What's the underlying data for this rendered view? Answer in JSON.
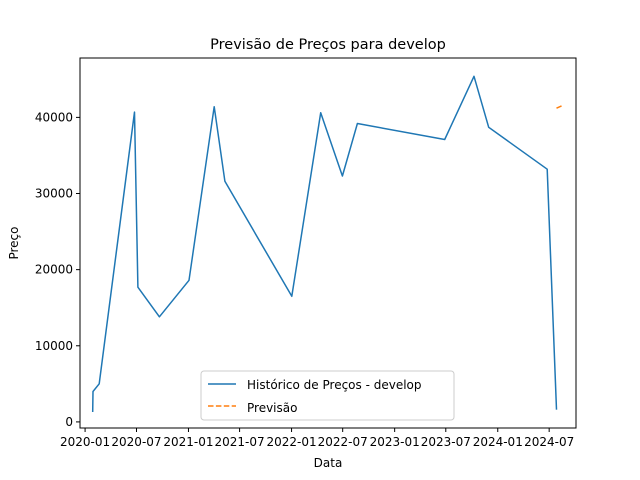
{
  "chart_data": {
    "type": "line",
    "title": "Previsão de Preços para develop",
    "xlabel": "Data",
    "ylabel": "Preço",
    "x_axis_type": "date",
    "xlim": [
      "2019-12-14",
      "2024-10-04"
    ],
    "ylim": [
      -800,
      47800
    ],
    "x_ticks": [
      {
        "date": "2020-01-01",
        "label": "2020-01"
      },
      {
        "date": "2020-07-01",
        "label": "2020-07"
      },
      {
        "date": "2021-01-01",
        "label": "2021-01"
      },
      {
        "date": "2021-07-01",
        "label": "2021-07"
      },
      {
        "date": "2022-01-01",
        "label": "2022-01"
      },
      {
        "date": "2022-07-01",
        "label": "2022-07"
      },
      {
        "date": "2023-01-01",
        "label": "2023-01"
      },
      {
        "date": "2023-07-01",
        "label": "2023-07"
      },
      {
        "date": "2024-01-01",
        "label": "2024-01"
      },
      {
        "date": "2024-07-01",
        "label": "2024-07"
      }
    ],
    "y_ticks": [
      0,
      10000,
      20000,
      30000,
      40000
    ],
    "y_tick_labels": [
      "0",
      "10000",
      "20000",
      "30000",
      "40000"
    ],
    "grid": false,
    "legend_position": "lower-center",
    "series": [
      {
        "name": "Histórico de Preços - develop",
        "color": "#1f77b4",
        "style": "solid",
        "points": [
          {
            "x": "2020-01-28",
            "y": 1300
          },
          {
            "x": "2020-01-29",
            "y": 4000
          },
          {
            "x": "2020-02-20",
            "y": 5000
          },
          {
            "x": "2020-06-24",
            "y": 40700
          },
          {
            "x": "2020-07-06",
            "y": 17700
          },
          {
            "x": "2020-09-20",
            "y": 13800
          },
          {
            "x": "2021-01-03",
            "y": 18600
          },
          {
            "x": "2021-04-02",
            "y": 41400
          },
          {
            "x": "2021-05-10",
            "y": 31600
          },
          {
            "x": "2022-01-02",
            "y": 16500
          },
          {
            "x": "2022-04-14",
            "y": 40600
          },
          {
            "x": "2022-06-30",
            "y": 32300
          },
          {
            "x": "2022-08-22",
            "y": 39200
          },
          {
            "x": "2023-06-27",
            "y": 37100
          },
          {
            "x": "2023-10-09",
            "y": 45400
          },
          {
            "x": "2023-11-30",
            "y": 38700
          },
          {
            "x": "2024-06-24",
            "y": 33200
          },
          {
            "x": "2024-07-27",
            "y": 1600
          }
        ]
      },
      {
        "name": "Previsão",
        "color": "#ff7f0e",
        "style": "dashed",
        "points": [
          {
            "x": "2024-07-27",
            "y": 41200
          },
          {
            "x": "2024-08-20",
            "y": 41600
          }
        ]
      }
    ]
  }
}
